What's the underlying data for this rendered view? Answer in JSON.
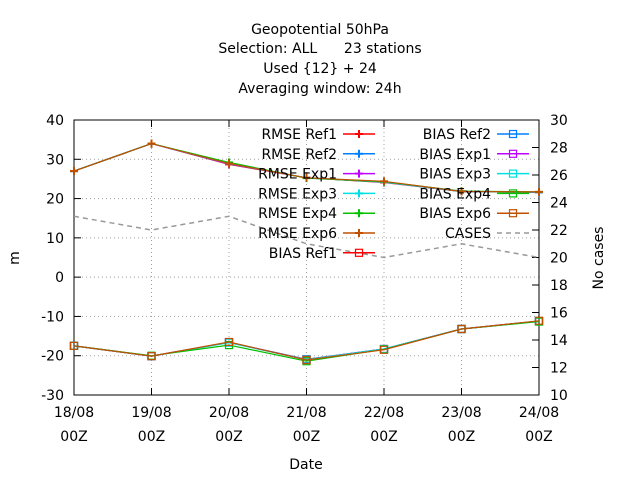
{
  "chart_data": {
    "type": "line",
    "title_lines": [
      "Geopotential 50hPa",
      "Selection: ALL      23 stations",
      "Used {12} + 24",
      "Averaging window: 24h"
    ],
    "xlabel": "Date",
    "ylabel": "m",
    "y2label": "No cases",
    "categories": [
      "18/08\n00Z",
      "19/08\n00Z",
      "20/08\n00Z",
      "21/08\n00Z",
      "22/08\n00Z",
      "23/08\n00Z",
      "24/08\n00Z"
    ],
    "ylim": [
      -30,
      40
    ],
    "y2lim": [
      10,
      30
    ],
    "yticks": [
      -30,
      -20,
      -10,
      0,
      10,
      20,
      30,
      40
    ],
    "y2ticks": [
      10,
      12,
      14,
      16,
      18,
      20,
      22,
      24,
      26,
      28,
      30
    ],
    "grid": true,
    "legend_position": "top-right",
    "series": [
      {
        "name": "RMSE Ref1",
        "color": "#ff0000",
        "marker": "plus",
        "axis": "y",
        "values": [
          27.0,
          34.0,
          28.7,
          25.3,
          24.1,
          21.8,
          21.6
        ]
      },
      {
        "name": "RMSE Ref2",
        "color": "#0080ff",
        "marker": "plus",
        "axis": "y",
        "values": [
          27.0,
          34.0,
          28.8,
          25.3,
          24.2,
          21.8,
          21.6
        ]
      },
      {
        "name": "RMSE Exp1",
        "color": "#c000ff",
        "marker": "plus",
        "axis": "y",
        "values": [
          27.0,
          34.0,
          28.8,
          25.3,
          24.2,
          21.8,
          21.6
        ]
      },
      {
        "name": "RMSE Exp3",
        "color": "#00e0e0",
        "marker": "plus",
        "axis": "y",
        "values": [
          27.0,
          34.0,
          28.9,
          25.3,
          24.2,
          21.8,
          21.6
        ]
      },
      {
        "name": "RMSE Exp4",
        "color": "#00c000",
        "marker": "plus",
        "axis": "y",
        "values": [
          27.0,
          34.0,
          29.2,
          25.2,
          24.3,
          21.9,
          21.7
        ]
      },
      {
        "name": "RMSE Exp6",
        "color": "#c05000",
        "marker": "plus",
        "axis": "y",
        "values": [
          27.0,
          34.0,
          28.9,
          25.3,
          24.4,
          21.8,
          21.7
        ]
      },
      {
        "name": "BIAS Ref1",
        "color": "#ff0000",
        "marker": "square",
        "axis": "y",
        "values": [
          -17.5,
          -20.1,
          -16.6,
          -20.9,
          -18.3,
          -13.2,
          -11.2
        ]
      },
      {
        "name": "BIAS Ref2",
        "color": "#0080ff",
        "marker": "square",
        "axis": "y",
        "values": [
          -17.5,
          -20.1,
          -16.6,
          -20.9,
          -18.3,
          -13.2,
          -11.2
        ]
      },
      {
        "name": "BIAS Exp1",
        "color": "#c000ff",
        "marker": "square",
        "axis": "y",
        "values": [
          -17.5,
          -20.1,
          -16.6,
          -21.0,
          -18.3,
          -13.2,
          -11.2
        ]
      },
      {
        "name": "BIAS Exp3",
        "color": "#00e0e0",
        "marker": "square",
        "axis": "y",
        "values": [
          -17.5,
          -20.1,
          -16.7,
          -21.0,
          -18.3,
          -13.2,
          -11.3
        ]
      },
      {
        "name": "BIAS Exp4",
        "color": "#00c000",
        "marker": "square",
        "axis": "y",
        "values": [
          -17.5,
          -20.0,
          -17.3,
          -21.4,
          -18.4,
          -13.2,
          -11.3
        ]
      },
      {
        "name": "BIAS Exp6",
        "color": "#c05000",
        "marker": "square",
        "axis": "y",
        "values": [
          -17.5,
          -20.1,
          -16.5,
          -21.1,
          -18.5,
          -13.2,
          -11.1
        ]
      },
      {
        "name": "CASES",
        "color": "#999999",
        "marker": "none",
        "dash": true,
        "axis": "y2",
        "values": [
          23,
          22,
          23,
          21,
          20,
          21,
          20
        ]
      }
    ]
  }
}
